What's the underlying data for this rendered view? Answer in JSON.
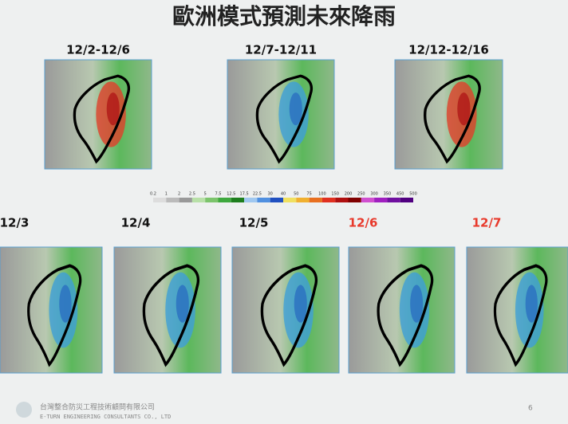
{
  "header": {
    "title": "歐洲模式預測未來降雨"
  },
  "period_maps": [
    {
      "label": "12/2-12/6"
    },
    {
      "label": "12/7-12/11"
    },
    {
      "label": "12/12-12/16"
    }
  ],
  "legend": {
    "ticks": [
      "0.2",
      "1",
      "2",
      "2.5",
      "5",
      "7.5",
      "12.5",
      "17.5",
      "22.5",
      "30",
      "40",
      "50",
      "75",
      "100",
      "150",
      "200",
      "250",
      "300",
      "350",
      "450",
      "500"
    ]
  },
  "daily_maps": [
    {
      "label": "12/3"
    },
    {
      "label": "12/4"
    },
    {
      "label": "12/5"
    },
    {
      "label": "12/6"
    },
    {
      "label": "12/7"
    }
  ],
  "footer": {
    "company": "台灣整合防災工程技術顧問有限公司",
    "company_en": "E-TURN ENGINEERING CONSULTANTS CO., LTD",
    "page": "6"
  }
}
